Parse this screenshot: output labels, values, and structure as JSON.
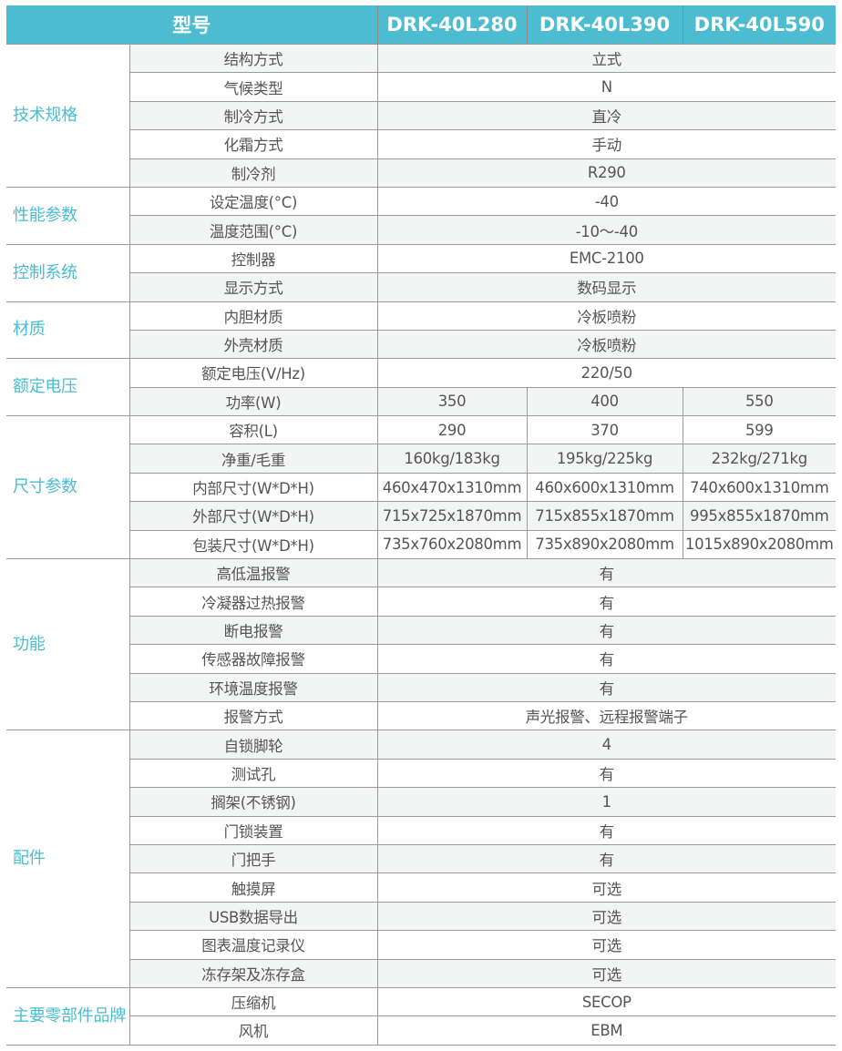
{
  "header": {
    "model_label": "型号",
    "models": [
      "DRK-40L280",
      "DRK-40L390",
      "DRK-40L590"
    ]
  },
  "colors": {
    "accent": "#4dbcd0",
    "row_shade": "#f3f4f4",
    "text": "#555555"
  },
  "groups": [
    {
      "category": "技术规格",
      "rows": [
        {
          "label": "结构方式",
          "value": "立式"
        },
        {
          "label": "气候类型",
          "value": "N"
        },
        {
          "label": "制冷方式",
          "value": "直冷"
        },
        {
          "label": "化霜方式",
          "value": "手动"
        },
        {
          "label": "制冷剂",
          "value": "R290"
        }
      ]
    },
    {
      "category": "性能参数",
      "rows": [
        {
          "label": "设定温度(°C)",
          "value": "-40"
        },
        {
          "label": "温度范围(°C)",
          "value": "-10～-40"
        }
      ]
    },
    {
      "category": "控制系统",
      "rows": [
        {
          "label": "控制器",
          "value": "EMC-2100"
        },
        {
          "label": "显示方式",
          "value": "数码显示"
        }
      ]
    },
    {
      "category": "材质",
      "rows": [
        {
          "label": "内胆材质",
          "value": "冷板喷粉"
        },
        {
          "label": "外壳材质",
          "value": "冷板喷粉"
        }
      ]
    },
    {
      "category": "额定电压",
      "rows": [
        {
          "label": "额定电压(V/Hz)",
          "value": "220/50"
        },
        {
          "label": "功率(W)",
          "values": [
            "350",
            "400",
            "550"
          ]
        }
      ]
    },
    {
      "category": "尺寸参数",
      "rows": [
        {
          "label": "容积(L)",
          "values": [
            "290",
            "370",
            "599"
          ]
        },
        {
          "label": "净重/毛重",
          "values": [
            "160kg/183kg",
            "195kg/225kg",
            "232kg/271kg"
          ]
        },
        {
          "label": "内部尺寸(W*D*H)",
          "values": [
            "460x470x1310mm",
            "460x600x1310mm",
            "740x600x1310mm"
          ]
        },
        {
          "label": "外部尺寸(W*D*H)",
          "values": [
            "715x725x1870mm",
            "715x855x1870mm",
            "995x855x1870mm"
          ]
        },
        {
          "label": "包装尺寸(W*D*H)",
          "values": [
            "735x760x2080mm",
            "735x890x2080mm",
            "1015x890x2080mm"
          ]
        }
      ]
    },
    {
      "category": "功能",
      "rows": [
        {
          "label": "高低温报警",
          "value": "有"
        },
        {
          "label": "冷凝器过热报警",
          "value": "有"
        },
        {
          "label": "断电报警",
          "value": "有"
        },
        {
          "label": "传感器故障报警",
          "value": "有"
        },
        {
          "label": "环境温度报警",
          "value": "有"
        },
        {
          "label": "报警方式",
          "value": "声光报警、远程报警端子"
        }
      ]
    },
    {
      "category": "配件",
      "rows": [
        {
          "label": "自锁脚轮",
          "value": "4"
        },
        {
          "label": "测试孔",
          "value": "有"
        },
        {
          "label": "搁架(不锈钢)",
          "value": "1"
        },
        {
          "label": "门锁装置",
          "value": "有"
        },
        {
          "label": "门把手",
          "value": "有"
        },
        {
          "label": "触摸屏",
          "value": "可选"
        },
        {
          "label": "USB数据导出",
          "value": "可选"
        },
        {
          "label": "图表温度记录仪",
          "value": "可选"
        },
        {
          "label": "冻存架及冻存盒",
          "value": "可选"
        }
      ]
    },
    {
      "category": "主要零部件品牌",
      "rows": [
        {
          "label": "压缩机",
          "value": "SECOP"
        },
        {
          "label": "风机",
          "value": "EBM"
        }
      ]
    }
  ]
}
